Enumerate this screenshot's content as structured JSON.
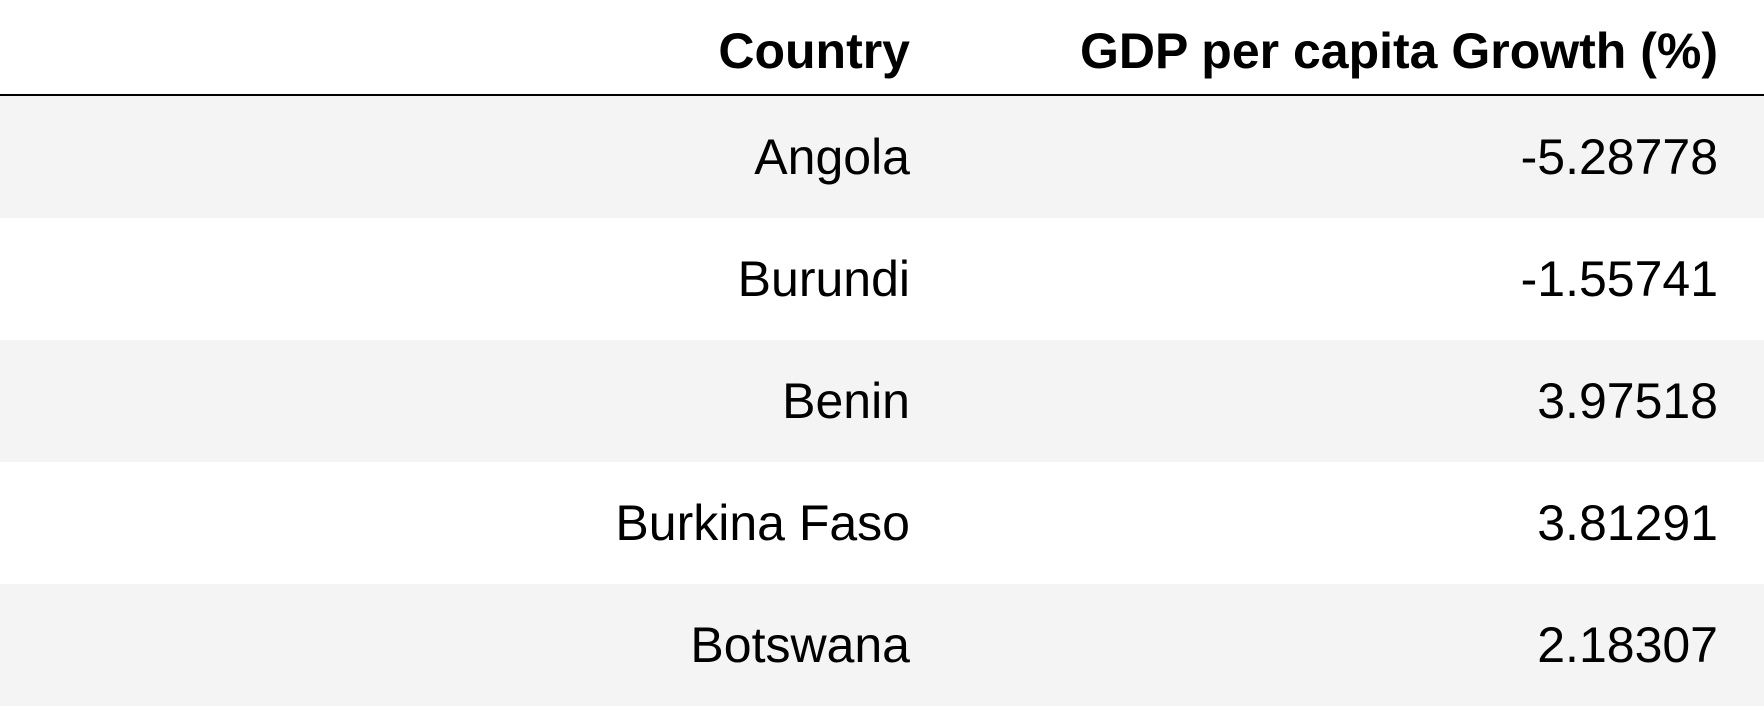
{
  "table": {
    "headers": {
      "country": "Country",
      "gdp": "GDP per capita Growth (%)"
    },
    "rows": [
      {
        "country": "Angola",
        "gdp": "-5.28778"
      },
      {
        "country": "Burundi",
        "gdp": "-1.55741"
      },
      {
        "country": "Benin",
        "gdp": "3.97518"
      },
      {
        "country": "Burkina Faso",
        "gdp": "3.81291"
      },
      {
        "country": "Botswana",
        "gdp": "2.18307"
      }
    ]
  }
}
